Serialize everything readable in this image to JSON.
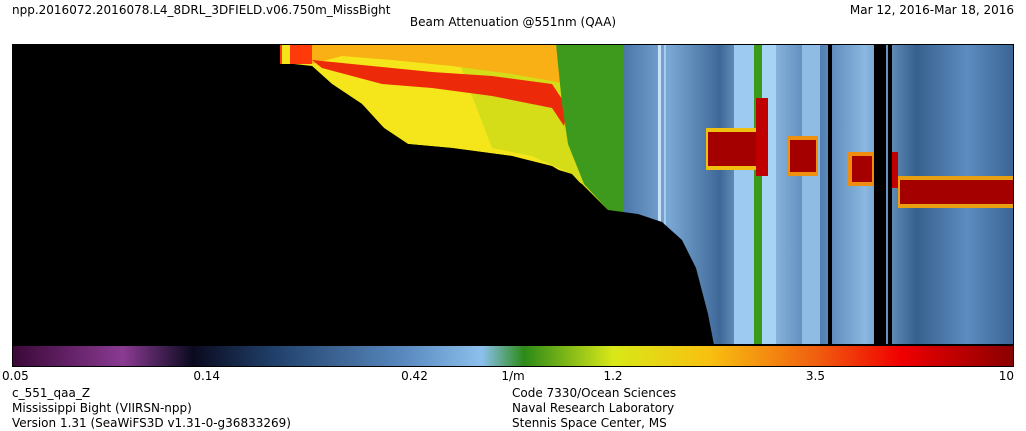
{
  "header": {
    "file_name": "npp.2016072.2016078.L4_8DRL_3DFIELD.v06.750m_MissBight",
    "date_range": "Mar 12, 2016-Mar 18, 2016",
    "title": "Beam Attenuation @551nm (QAA)"
  },
  "footer": {
    "left_lines": [
      "c_551_qaa_Z",
      "Mississippi Bight (VIIRSN-npp)",
      "Version 1.31 (SeaWiFS3D v1.31-0-g36833269)"
    ],
    "right_lines": [
      "Code 7330/Ocean Sciences",
      "Naval Research Laboratory",
      "Stennis Space Center, MS"
    ]
  },
  "colors": {
    "background": "#ffffff",
    "no_data": "#000000",
    "axis_border": "#000000"
  },
  "chart_data": {
    "type": "heatmap",
    "title": "Beam Attenuation @551nm (QAA)",
    "units": "1/m",
    "scale": "log",
    "range": [
      0.05,
      10
    ],
    "colorbar": {
      "ticks": [
        {
          "value": 0.05,
          "label": "0.05"
        },
        {
          "value": 0.14,
          "label": "0.14"
        },
        {
          "value": 0.42,
          "label": "0.42"
        },
        {
          "value": 1.2,
          "label": "1.2"
        },
        {
          "value": 3.5,
          "label": "3.5"
        },
        {
          "value": 10,
          "label": "10"
        }
      ],
      "unit_label": "1/m",
      "stops": [
        {
          "value": 0.05,
          "color": "#3a0838"
        },
        {
          "value": 0.09,
          "color": "#8a3a92"
        },
        {
          "value": 0.13,
          "color": "#0a0a1e"
        },
        {
          "value": 0.2,
          "color": "#20406a"
        },
        {
          "value": 0.4,
          "color": "#5a8ac0"
        },
        {
          "value": 0.6,
          "color": "#8cc0ec"
        },
        {
          "value": 0.75,
          "color": "#2c8a18"
        },
        {
          "value": 1.2,
          "color": "#d8e818"
        },
        {
          "value": 2.0,
          "color": "#f8c010"
        },
        {
          "value": 3.5,
          "color": "#f06010"
        },
        {
          "value": 5.5,
          "color": "#f00000"
        },
        {
          "value": 10,
          "color": "#8a0000"
        }
      ]
    }
  }
}
